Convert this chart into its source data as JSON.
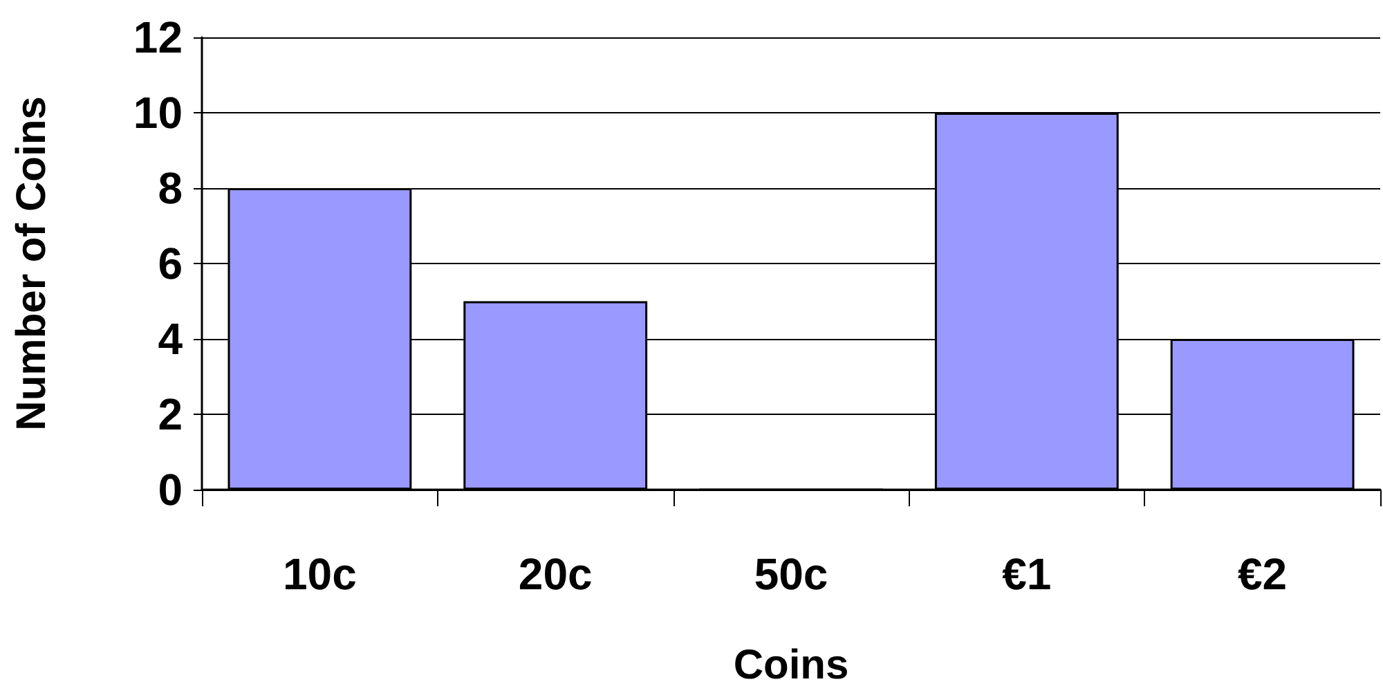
{
  "chart_data": {
    "type": "bar",
    "xlabel": "Coins",
    "ylabel": "Number of Coins",
    "categories": [
      "10c",
      "20c",
      "50c",
      "€1",
      "€2"
    ],
    "values": [
      8,
      5,
      0,
      10,
      4
    ],
    "color": "#9999ff",
    "ylim": [
      0,
      12
    ],
    "yticks": [
      0,
      2,
      4,
      6,
      8,
      10,
      12
    ],
    "grid": "y"
  }
}
